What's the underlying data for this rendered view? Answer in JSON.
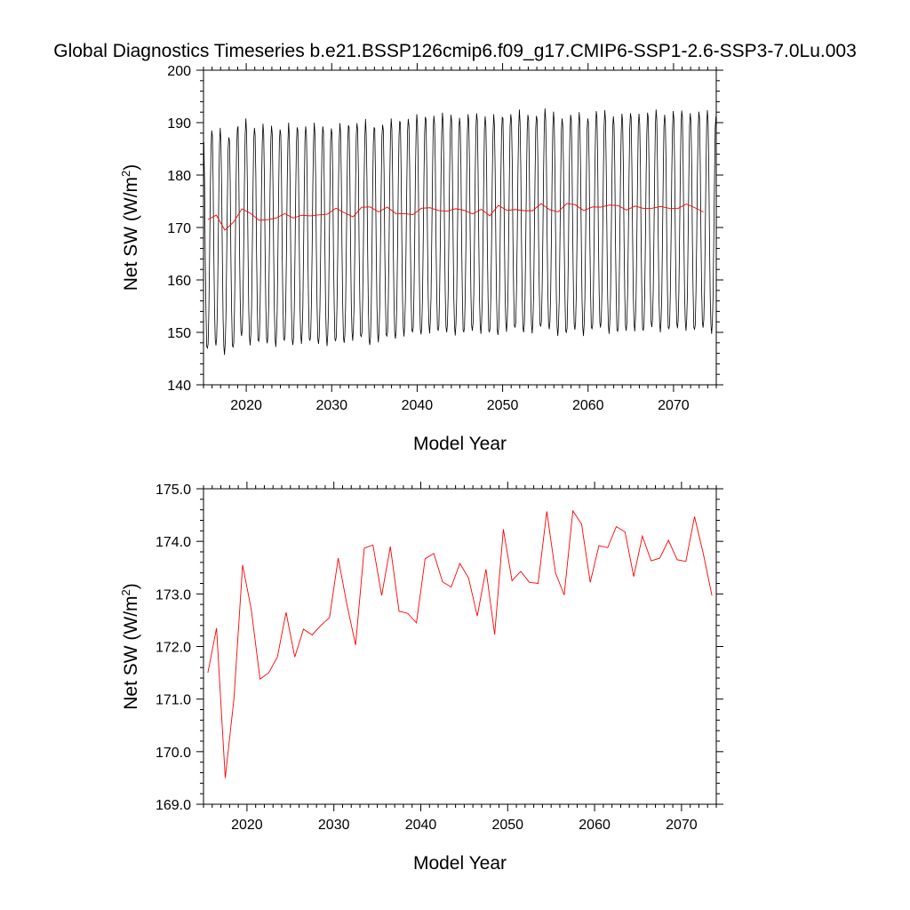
{
  "title": "Global Diagnostics Timeseries b.e21.BSSP126cmip6.f09_g17.CMIP6-SSP1-2.6-SSP3-7.0Lu.003",
  "chart_data": [
    {
      "type": "line",
      "xlabel": "Model Year",
      "ylabel": "Net SW (W/m²)",
      "ylabel_main": "Net SW (W/m",
      "ylabel_sup": "2",
      "ylabel_close": ")",
      "xlim": [
        2015,
        2075
      ],
      "ylim": [
        140,
        200
      ],
      "xticks": [
        2020,
        2030,
        2040,
        2050,
        2060,
        2070
      ],
      "xtick_labels": [
        "2020",
        "2030",
        "2040",
        "2050",
        "2060",
        "2070"
      ],
      "yticks": [
        140,
        150,
        160,
        170,
        180,
        190,
        200
      ],
      "ytick_labels": [
        "140",
        "150",
        "160",
        "170",
        "180",
        "190",
        "200"
      ],
      "monthly_series": {
        "name": "monthly",
        "color": "#000000",
        "start_year": 2015,
        "monthly_climatology": [
          188.5,
          180.0,
          166.0,
          155.5,
          149.5,
          148.5,
          150.0,
          155.5,
          166.0,
          178.0,
          187.0,
          190.0
        ],
        "annual_offset": [
          -1.8,
          -1.0,
          -2.5,
          -1.6,
          0.8,
          -0.7,
          -0.5,
          -0.6,
          -1.0,
          -0.3,
          -0.9,
          -0.4,
          -0.3,
          -0.7,
          -0.8,
          -0.4,
          -0.5,
          0.2,
          0.4,
          -0.9,
          -0.1,
          0.5,
          0.3,
          1.0,
          1.3,
          1.1,
          1.6,
          1.6,
          1.5,
          1.2,
          1.3,
          1.8,
          1.5,
          1.3,
          1.0,
          1.9,
          2.2,
          1.5,
          1.6,
          2.4,
          2.1,
          1.1,
          1.2,
          2.0,
          1.1,
          1.9,
          2.4,
          1.5,
          1.4,
          1.8,
          2.0,
          1.6,
          2.5,
          1.8,
          1.9,
          2.3,
          2.1,
          1.8,
          2.4,
          1.5
        ]
      },
      "annual_series": {
        "name": "annual mean",
        "color": "#ff0000",
        "x": [
          2015.5,
          2016.5,
          2017.5,
          2018.5,
          2019.5,
          2020.5,
          2021.5,
          2022.5,
          2023.5,
          2024.5,
          2025.5,
          2026.5,
          2027.5,
          2028.5,
          2029.5,
          2030.5,
          2031.5,
          2032.5,
          2033.5,
          2034.5,
          2035.5,
          2036.5,
          2037.5,
          2038.5,
          2039.5,
          2040.5,
          2041.5,
          2042.5,
          2043.5,
          2044.5,
          2045.5,
          2046.5,
          2047.5,
          2048.5,
          2049.5,
          2050.5,
          2051.5,
          2052.5,
          2053.5,
          2054.5,
          2055.5,
          2056.5,
          2057.5,
          2058.5,
          2059.5,
          2060.5,
          2061.5,
          2062.5,
          2063.5,
          2064.5,
          2065.5,
          2066.5,
          2067.5,
          2068.5,
          2069.5,
          2070.5,
          2071.5,
          2072.5,
          2073.5
        ],
        "values": [
          171.5,
          172.35,
          169.5,
          171.0,
          173.55,
          172.7,
          171.38,
          171.5,
          171.8,
          172.65,
          171.8,
          172.33,
          172.22,
          172.4,
          172.55,
          173.68,
          172.8,
          172.03,
          173.87,
          173.93,
          172.97,
          173.9,
          172.67,
          172.63,
          172.45,
          173.67,
          173.77,
          173.23,
          173.13,
          173.58,
          173.3,
          172.58,
          173.47,
          172.23,
          174.23,
          173.25,
          173.43,
          173.22,
          173.2,
          174.57,
          173.4,
          172.98,
          174.58,
          174.33,
          173.22,
          173.92,
          173.88,
          174.28,
          174.18,
          173.33,
          174.1,
          173.63,
          173.68,
          174.02,
          173.65,
          173.62,
          174.47,
          173.77,
          172.97
        ]
      }
    },
    {
      "type": "line",
      "xlabel": "Model Year",
      "ylabel": "Net SW (W/m²)",
      "ylabel_main": "Net SW (W/m",
      "ylabel_sup": "2",
      "ylabel_close": ")",
      "xlim": [
        2015,
        2074
      ],
      "ylim": [
        169.0,
        175.0
      ],
      "xticks": [
        2020,
        2030,
        2040,
        2050,
        2060,
        2070
      ],
      "xtick_labels": [
        "2020",
        "2030",
        "2040",
        "2050",
        "2060",
        "2070"
      ],
      "yticks": [
        169,
        170,
        171,
        172,
        173,
        174,
        175
      ],
      "ytick_labels": [
        "169.0",
        "170.0",
        "171.0",
        "172.0",
        "173.0",
        "174.0",
        "175.0"
      ],
      "annual_series": {
        "name": "annual mean",
        "color": "#ff0000",
        "x": [
          2015.5,
          2016.5,
          2017.5,
          2018.5,
          2019.5,
          2020.5,
          2021.5,
          2022.5,
          2023.5,
          2024.5,
          2025.5,
          2026.5,
          2027.5,
          2028.5,
          2029.5,
          2030.5,
          2031.5,
          2032.5,
          2033.5,
          2034.5,
          2035.5,
          2036.5,
          2037.5,
          2038.5,
          2039.5,
          2040.5,
          2041.5,
          2042.5,
          2043.5,
          2044.5,
          2045.5,
          2046.5,
          2047.5,
          2048.5,
          2049.5,
          2050.5,
          2051.5,
          2052.5,
          2053.5,
          2054.5,
          2055.5,
          2056.5,
          2057.5,
          2058.5,
          2059.5,
          2060.5,
          2061.5,
          2062.5,
          2063.5,
          2064.5,
          2065.5,
          2066.5,
          2067.5,
          2068.5,
          2069.5,
          2070.5,
          2071.5,
          2072.5,
          2073.5
        ],
        "values": [
          171.5,
          172.35,
          169.5,
          171.0,
          173.55,
          172.7,
          171.38,
          171.5,
          171.8,
          172.65,
          171.8,
          172.33,
          172.22,
          172.4,
          172.55,
          173.68,
          172.8,
          172.03,
          173.87,
          173.93,
          172.97,
          173.9,
          172.67,
          172.63,
          172.45,
          173.67,
          173.77,
          173.23,
          173.13,
          173.58,
          173.3,
          172.58,
          173.47,
          172.23,
          174.23,
          173.25,
          173.43,
          173.22,
          173.2,
          174.57,
          173.4,
          172.98,
          174.58,
          174.33,
          173.22,
          173.92,
          173.88,
          174.28,
          174.18,
          173.33,
          174.1,
          173.63,
          173.68,
          174.02,
          173.65,
          173.62,
          174.47,
          173.77,
          172.97
        ]
      }
    }
  ]
}
